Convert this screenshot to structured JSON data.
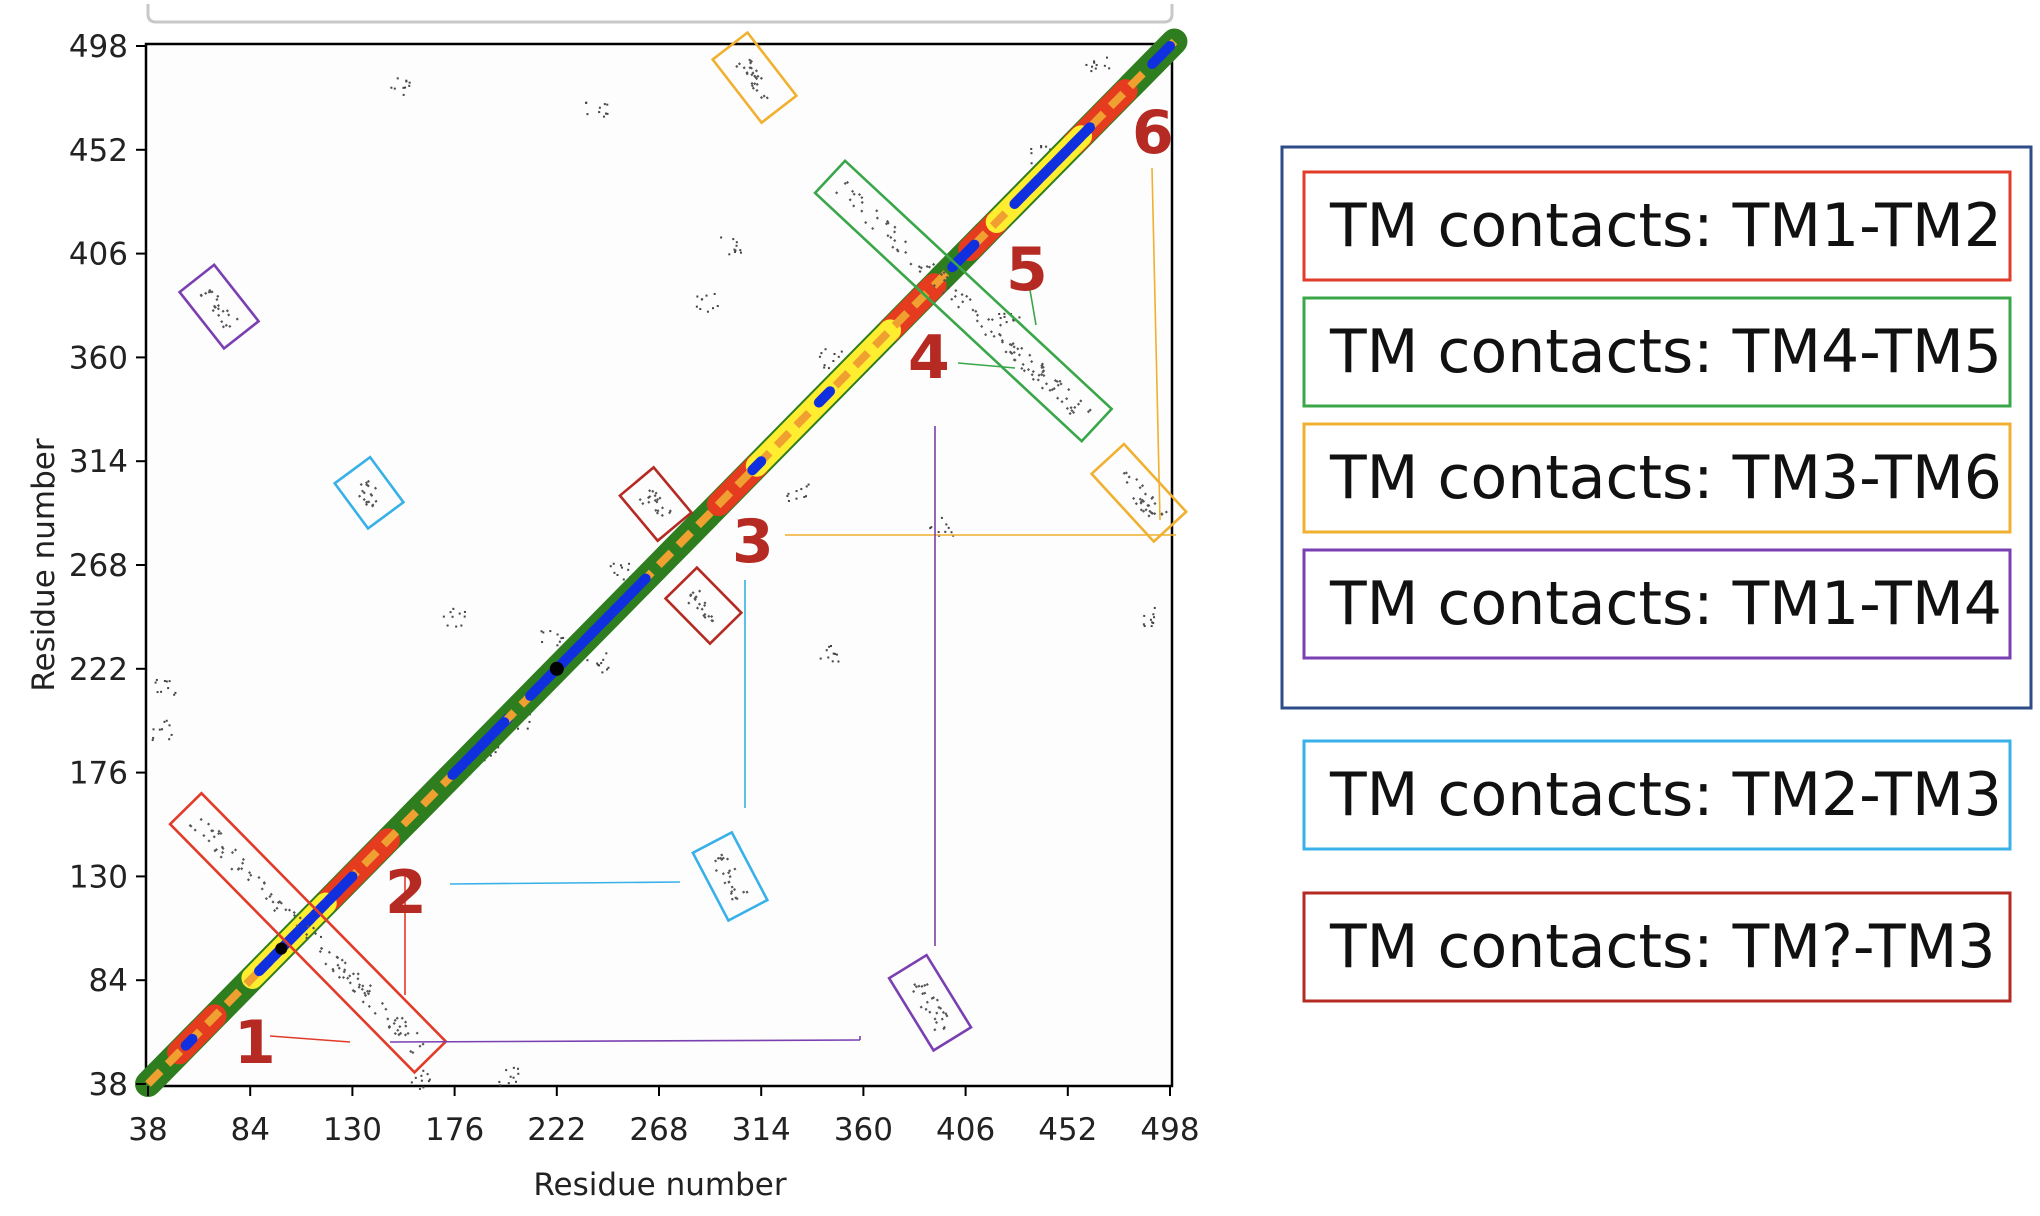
{
  "chart_data": {
    "type": "heatmap",
    "title": "",
    "xlabel": "Residue number",
    "ylabel": "Residue number",
    "xlim": [
      38,
      498
    ],
    "ylim": [
      38,
      498
    ],
    "x_ticks": [
      38,
      84,
      130,
      176,
      222,
      268,
      314,
      360,
      406,
      452,
      498
    ],
    "y_ticks": [
      38,
      84,
      130,
      176,
      222,
      268,
      314,
      360,
      406,
      452,
      498
    ],
    "grid": false,
    "diagonal_bands": [
      {
        "color": "#2e7d1f",
        "start": 38,
        "end": 500,
        "name": "green"
      },
      {
        "color": "#e53b1f",
        "start": 38,
        "end": 500,
        "name": "red"
      },
      {
        "color": "#ffee30",
        "start": 38,
        "end": 500,
        "name": "yellow"
      },
      {
        "color": "#f0a030",
        "start": 38,
        "end": 500,
        "name": "orange"
      },
      {
        "color": "#1030e0",
        "start": 38,
        "end": 500,
        "name": "blue"
      }
    ],
    "band_segments": [
      {
        "color": "#2e7d1f",
        "segments": [
          [
            38,
            62
          ],
          [
            155,
            290
          ],
          [
            395,
            415
          ],
          [
            480,
            500
          ]
        ]
      },
      {
        "color": "#e53b1f",
        "segments": [
          [
            52,
            68
          ],
          [
            120,
            146
          ],
          [
            295,
            312
          ],
          [
            372,
            392
          ],
          [
            408,
            420
          ],
          [
            455,
            478
          ]
        ]
      },
      {
        "color": "#ffee30",
        "segments": [
          [
            85,
            118
          ],
          [
            312,
            372
          ],
          [
            420,
            458
          ]
        ]
      },
      {
        "color": "#1030e0",
        "segments": [
          [
            55,
            58
          ],
          [
            88,
            130
          ],
          [
            175,
            200
          ],
          [
            210,
            262
          ],
          [
            310,
            314
          ],
          [
            340,
            345
          ],
          [
            400,
            410
          ],
          [
            428,
            462
          ],
          [
            490,
            498
          ]
        ]
      }
    ],
    "contact_clusters": [
      {
        "label": "TM contacts: TM1-TM2",
        "color": "#e23b2a",
        "x": [
          55,
          165
        ],
        "y": [
          160,
          50
        ],
        "box": "outline"
      },
      {
        "label": "TM contacts: TM4-TM5",
        "color": "#3aa64a",
        "x": [
          345,
          465
        ],
        "y": [
          440,
          330
        ],
        "box": "outline"
      },
      {
        "label": "TM contacts: TM3-TM6",
        "color": "#f0b030",
        "x": [
          300,
          322
        ],
        "y": [
          498,
          470
        ],
        "box": "outline"
      },
      {
        "label": "TM contacts: TM3-TM6",
        "color": "#f0b030",
        "x": [
          470,
          498
        ],
        "y": [
          315,
          285
        ],
        "box": "outline"
      },
      {
        "label": "TM contacts: TM1-TM4",
        "color": "#7a3fb0",
        "x": [
          60,
          80
        ],
        "y": [
          395,
          370
        ],
        "box": "outline"
      },
      {
        "label": "TM contacts: TM1-TM4",
        "color": "#7a3fb0",
        "x": [
          380,
          400
        ],
        "y": [
          90,
          58
        ],
        "box": "outline"
      },
      {
        "label": "TM contacts: TM2-TM3",
        "color": "#38b0e8",
        "x": [
          130,
          145
        ],
        "y": [
          310,
          290
        ],
        "box": "outline"
      },
      {
        "label": "TM contacts: TM2-TM3",
        "color": "#38b0e8",
        "x": [
          292,
          308
        ],
        "y": [
          145,
          115
        ],
        "box": "outline"
      },
      {
        "label": "TM contacts: TM?-TM3",
        "color": "#b52a22",
        "x": [
          258,
          275
        ],
        "y": [
          305,
          285
        ],
        "box": "outline"
      },
      {
        "label": "TM contacts: TM?-TM3",
        "color": "#b52a22",
        "x": [
          278,
          298
        ],
        "y": [
          260,
          240
        ],
        "box": "outline"
      }
    ],
    "annotations": [
      "1",
      "2",
      "3",
      "4",
      "5",
      "6"
    ]
  },
  "legend": {
    "group": [
      {
        "text": "TM contacts: TM1-TM2",
        "color": "#e23b2a"
      },
      {
        "text": "TM contacts: TM4-TM5",
        "color": "#3aa64a"
      },
      {
        "text": "TM contacts: TM3-TM6",
        "color": "#f0b030"
      },
      {
        "text": "TM contacts: TM1-TM4",
        "color": "#7a3fb0"
      }
    ],
    "group_border_color": "#2e4b8a",
    "single": [
      {
        "text": "TM contacts: TM2-TM3",
        "color": "#38b0e8"
      },
      {
        "text": "TM contacts: TM?-TM3",
        "color": "#b52a22"
      }
    ]
  }
}
